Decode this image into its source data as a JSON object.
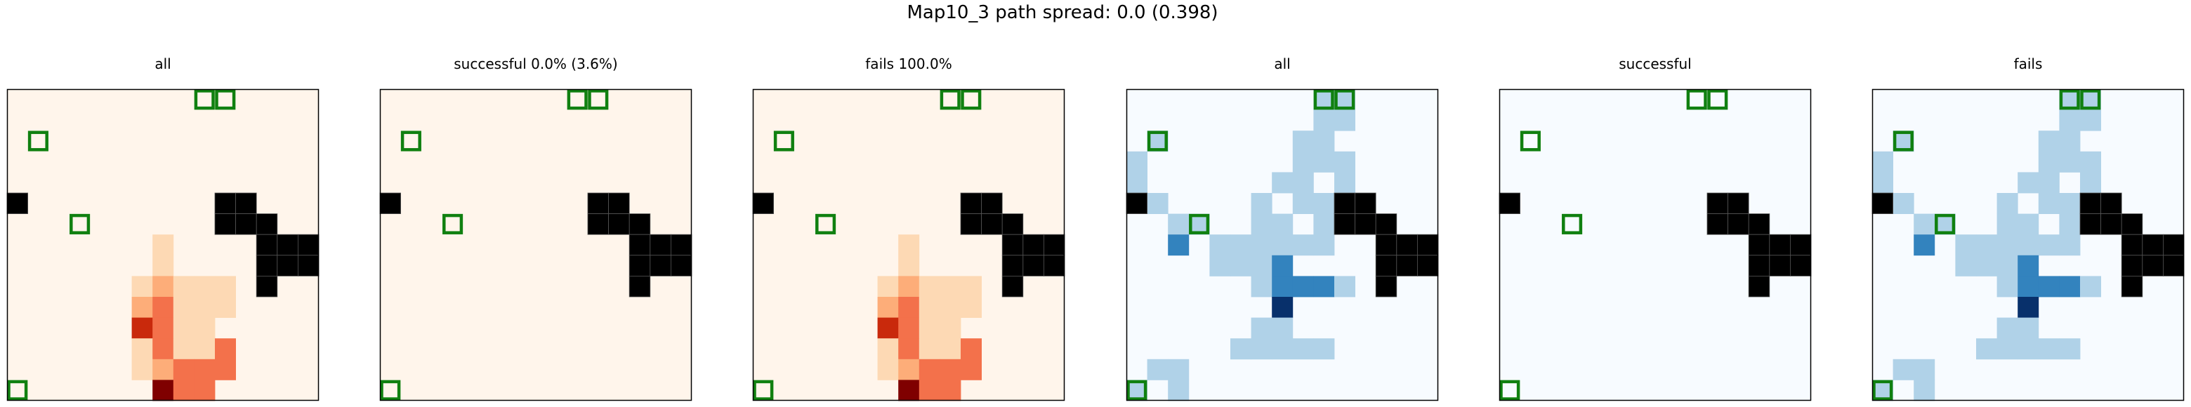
{
  "figure": {
    "title": "Map10_3 path spread: 0.0 (0.398)",
    "panel_titles": [
      "all",
      "successful 0.0% (3.6%)",
      "fails 100.0%",
      "all",
      "successful",
      "fails"
    ]
  },
  "chart_data": {
    "type": "heatmap",
    "grid_rows": 15,
    "grid_cols": 15,
    "x_range": [
      0,
      15
    ],
    "y_range": [
      0,
      15
    ],
    "colormaps": {
      "Oranges": [
        "#fff5eb",
        "#fdd9b4",
        "#fdad79",
        "#f3714b",
        "#c9290c",
        "#7f0000"
      ],
      "Blues": [
        "#f7fbff",
        "#b0d2e8",
        "#3383be",
        "#08306b"
      ]
    },
    "obstacle_color": "#000000",
    "target_color": "#108010",
    "obstacles": [
      [
        5,
        0
      ],
      [
        5,
        10
      ],
      [
        5,
        11
      ],
      [
        6,
        10
      ],
      [
        6,
        11
      ],
      [
        6,
        12
      ],
      [
        7,
        12
      ],
      [
        7,
        13
      ],
      [
        7,
        14
      ],
      [
        8,
        12
      ],
      [
        8,
        13
      ],
      [
        8,
        14
      ],
      [
        9,
        12
      ]
    ],
    "targets": [
      [
        0,
        9
      ],
      [
        0,
        10
      ],
      [
        2,
        1
      ],
      [
        6,
        3
      ],
      [
        14,
        0
      ]
    ],
    "panels": [
      {
        "title": "all",
        "colormap": "Oranges",
        "cells": [
          [
            7,
            7,
            1
          ],
          [
            8,
            7,
            1
          ],
          [
            9,
            6,
            1
          ],
          [
            9,
            7,
            2
          ],
          [
            9,
            8,
            1
          ],
          [
            9,
            9,
            1
          ],
          [
            9,
            10,
            1
          ],
          [
            10,
            6,
            2
          ],
          [
            10,
            7,
            3
          ],
          [
            10,
            8,
            1
          ],
          [
            10,
            9,
            1
          ],
          [
            10,
            10,
            1
          ],
          [
            11,
            6,
            4
          ],
          [
            11,
            7,
            3
          ],
          [
            11,
            8,
            1
          ],
          [
            11,
            9,
            1
          ],
          [
            12,
            6,
            1
          ],
          [
            12,
            7,
            3
          ],
          [
            12,
            8,
            1
          ],
          [
            12,
            9,
            1
          ],
          [
            12,
            10,
            3
          ],
          [
            13,
            6,
            1
          ],
          [
            13,
            7,
            2
          ],
          [
            13,
            8,
            3
          ],
          [
            13,
            9,
            3
          ],
          [
            13,
            10,
            3
          ],
          [
            14,
            7,
            5
          ],
          [
            14,
            8,
            3
          ],
          [
            14,
            9,
            3
          ]
        ]
      },
      {
        "title": "successful 0.0% (3.6%)",
        "colormap": "Oranges",
        "cells": []
      },
      {
        "title": "fails 100.0%",
        "colormap": "Oranges",
        "cells": [
          [
            7,
            7,
            1
          ],
          [
            8,
            7,
            1
          ],
          [
            9,
            6,
            1
          ],
          [
            9,
            7,
            2
          ],
          [
            9,
            8,
            1
          ],
          [
            9,
            9,
            1
          ],
          [
            9,
            10,
            1
          ],
          [
            10,
            6,
            2
          ],
          [
            10,
            7,
            3
          ],
          [
            10,
            8,
            1
          ],
          [
            10,
            9,
            1
          ],
          [
            10,
            10,
            1
          ],
          [
            11,
            6,
            4
          ],
          [
            11,
            7,
            3
          ],
          [
            11,
            8,
            1
          ],
          [
            11,
            9,
            1
          ],
          [
            12,
            6,
            1
          ],
          [
            12,
            7,
            3
          ],
          [
            12,
            8,
            1
          ],
          [
            12,
            9,
            1
          ],
          [
            12,
            10,
            3
          ],
          [
            13,
            6,
            1
          ],
          [
            13,
            7,
            2
          ],
          [
            13,
            8,
            3
          ],
          [
            13,
            9,
            3
          ],
          [
            13,
            10,
            3
          ],
          [
            14,
            7,
            5
          ],
          [
            14,
            8,
            3
          ],
          [
            14,
            9,
            3
          ]
        ]
      },
      {
        "title": "all",
        "colormap": "Blues",
        "cells": [
          [
            0,
            9,
            1
          ],
          [
            0,
            10,
            1
          ],
          [
            1,
            9,
            1
          ],
          [
            1,
            10,
            1
          ],
          [
            2,
            1,
            1
          ],
          [
            2,
            8,
            1
          ],
          [
            2,
            9,
            1
          ],
          [
            3,
            0,
            1
          ],
          [
            3,
            8,
            1
          ],
          [
            3,
            9,
            1
          ],
          [
            3,
            10,
            1
          ],
          [
            4,
            0,
            1
          ],
          [
            4,
            7,
            1
          ],
          [
            4,
            8,
            1
          ],
          [
            4,
            10,
            1
          ],
          [
            5,
            1,
            1
          ],
          [
            5,
            6,
            1
          ],
          [
            5,
            8,
            1
          ],
          [
            5,
            9,
            1
          ],
          [
            6,
            2,
            1
          ],
          [
            6,
            3,
            1
          ],
          [
            6,
            6,
            1
          ],
          [
            6,
            7,
            1
          ],
          [
            6,
            9,
            1
          ],
          [
            7,
            2,
            2
          ],
          [
            7,
            4,
            1
          ],
          [
            7,
            5,
            1
          ],
          [
            7,
            6,
            1
          ],
          [
            7,
            7,
            1
          ],
          [
            7,
            8,
            1
          ],
          [
            7,
            9,
            1
          ],
          [
            8,
            4,
            1
          ],
          [
            8,
            5,
            1
          ],
          [
            8,
            6,
            1
          ],
          [
            8,
            7,
            2
          ],
          [
            9,
            6,
            1
          ],
          [
            9,
            7,
            2
          ],
          [
            9,
            8,
            2
          ],
          [
            9,
            9,
            2
          ],
          [
            9,
            10,
            1
          ],
          [
            10,
            7,
            3
          ],
          [
            11,
            6,
            1
          ],
          [
            11,
            7,
            1
          ],
          [
            12,
            5,
            1
          ],
          [
            12,
            6,
            1
          ],
          [
            12,
            7,
            1
          ],
          [
            12,
            8,
            1
          ],
          [
            12,
            9,
            1
          ],
          [
            13,
            1,
            1
          ],
          [
            13,
            2,
            1
          ],
          [
            14,
            0,
            1
          ],
          [
            14,
            2,
            1
          ]
        ]
      },
      {
        "title": "successful",
        "colormap": "Blues",
        "cells": []
      },
      {
        "title": "fails",
        "colormap": "Blues",
        "cells": [
          [
            0,
            9,
            1
          ],
          [
            0,
            10,
            1
          ],
          [
            1,
            9,
            1
          ],
          [
            1,
            10,
            1
          ],
          [
            2,
            1,
            1
          ],
          [
            2,
            8,
            1
          ],
          [
            2,
            9,
            1
          ],
          [
            3,
            0,
            1
          ],
          [
            3,
            8,
            1
          ],
          [
            3,
            9,
            1
          ],
          [
            3,
            10,
            1
          ],
          [
            4,
            0,
            1
          ],
          [
            4,
            7,
            1
          ],
          [
            4,
            8,
            1
          ],
          [
            4,
            10,
            1
          ],
          [
            5,
            1,
            1
          ],
          [
            5,
            6,
            1
          ],
          [
            5,
            8,
            1
          ],
          [
            5,
            9,
            1
          ],
          [
            6,
            2,
            1
          ],
          [
            6,
            3,
            1
          ],
          [
            6,
            6,
            1
          ],
          [
            6,
            7,
            1
          ],
          [
            6,
            9,
            1
          ],
          [
            7,
            2,
            2
          ],
          [
            7,
            4,
            1
          ],
          [
            7,
            5,
            1
          ],
          [
            7,
            6,
            1
          ],
          [
            7,
            7,
            1
          ],
          [
            7,
            8,
            1
          ],
          [
            7,
            9,
            1
          ],
          [
            8,
            4,
            1
          ],
          [
            8,
            5,
            1
          ],
          [
            8,
            6,
            1
          ],
          [
            8,
            7,
            2
          ],
          [
            9,
            6,
            1
          ],
          [
            9,
            7,
            2
          ],
          [
            9,
            8,
            2
          ],
          [
            9,
            9,
            2
          ],
          [
            9,
            10,
            1
          ],
          [
            10,
            7,
            3
          ],
          [
            11,
            6,
            1
          ],
          [
            11,
            7,
            1
          ],
          [
            12,
            5,
            1
          ],
          [
            12,
            6,
            1
          ],
          [
            12,
            7,
            1
          ],
          [
            12,
            8,
            1
          ],
          [
            12,
            9,
            1
          ],
          [
            13,
            1,
            1
          ],
          [
            13,
            2,
            1
          ],
          [
            14,
            0,
            1
          ],
          [
            14,
            2,
            1
          ]
        ]
      }
    ]
  }
}
